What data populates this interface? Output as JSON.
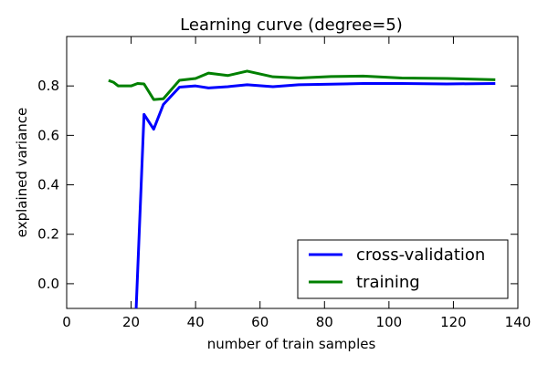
{
  "chart_data": {
    "type": "line",
    "title": "Learning curve (degree=5)",
    "xlabel": "number of train samples",
    "ylabel": "explained variance",
    "xlim": [
      0,
      140
    ],
    "ylim": [
      -0.1,
      1.0
    ],
    "x_ticks": [
      0,
      20,
      40,
      60,
      80,
      100,
      120,
      140
    ],
    "y_ticks": [
      -0.0,
      0.2,
      0.4,
      0.6,
      0.8
    ],
    "x_tick_labels": [
      "0",
      "20",
      "40",
      "60",
      "80",
      "100",
      "120",
      "140"
    ],
    "y_tick_labels": [
      "0.0",
      "0.2",
      "0.4",
      "0.6",
      "0.8"
    ],
    "grid": false,
    "legend_position": "lower-right",
    "series": [
      {
        "name": "cross-validation",
        "color": "#0000ff",
        "x": [
          21.5,
          24,
          27,
          30,
          35,
          40,
          44,
          50,
          56,
          64,
          72,
          82,
          92,
          104,
          118,
          133
        ],
        "y": [
          -0.12,
          0.685,
          0.625,
          0.725,
          0.795,
          0.8,
          0.792,
          0.797,
          0.805,
          0.797,
          0.805,
          0.807,
          0.81,
          0.81,
          0.808,
          0.81
        ]
      },
      {
        "name": "training",
        "color": "#008000",
        "x": [
          13,
          14.5,
          16,
          18,
          20,
          22,
          24,
          27,
          30,
          35,
          40,
          44,
          50,
          56,
          64,
          72,
          82,
          92,
          104,
          118,
          133
        ],
        "y": [
          0.822,
          0.815,
          0.8,
          0.8,
          0.8,
          0.81,
          0.808,
          0.745,
          0.748,
          0.823,
          0.83,
          0.852,
          0.842,
          0.86,
          0.837,
          0.832,
          0.838,
          0.84,
          0.832,
          0.83,
          0.825
        ]
      }
    ]
  }
}
